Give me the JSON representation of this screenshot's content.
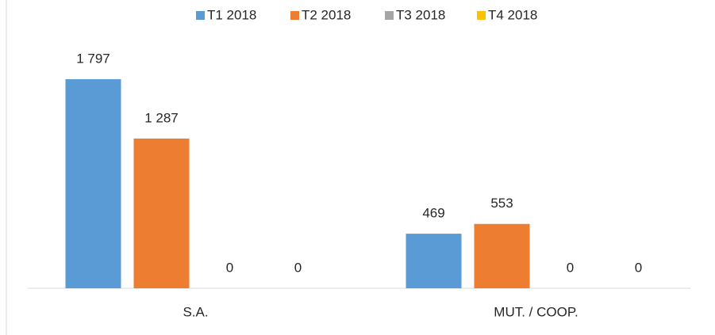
{
  "chart_data": {
    "type": "bar",
    "categories": [
      "S.A.",
      "MUT. / COOP."
    ],
    "series": [
      {
        "name": "T1 2018",
        "color": "#5b9bd5",
        "values": [
          1797,
          469
        ],
        "value_labels": [
          "1 797",
          "469"
        ]
      },
      {
        "name": "T2 2018",
        "color": "#ed7d31",
        "values": [
          1287,
          553
        ],
        "value_labels": [
          "1 287",
          "553"
        ]
      },
      {
        "name": "T3 2018",
        "color": "#a5a5a5",
        "values": [
          0,
          0
        ],
        "value_labels": [
          "0",
          "0"
        ]
      },
      {
        "name": "T4 2018",
        "color": "#ffc000",
        "values": [
          0,
          0
        ],
        "value_labels": [
          "0",
          "0"
        ]
      }
    ],
    "legend": "top"
  }
}
